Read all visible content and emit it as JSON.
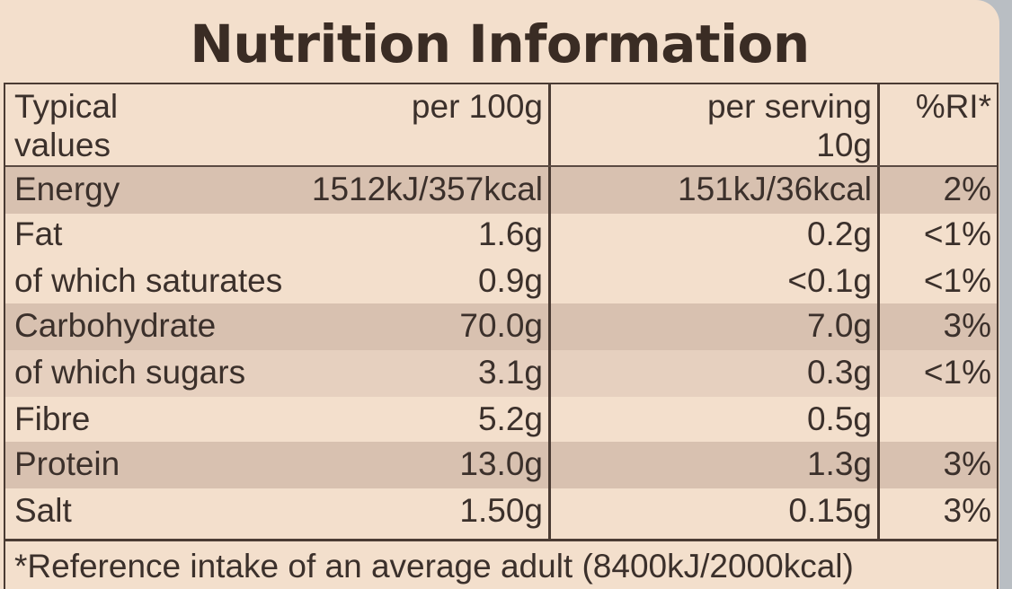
{
  "title": "Nutrition Information",
  "header": {
    "col1_line1": "Typical",
    "col1_line2": "values",
    "col2": "per 100g",
    "col3_line1": "per serving",
    "col3_line2": "10g",
    "col4": "%RI*"
  },
  "rows": [
    {
      "name": "Energy",
      "per100": "1512kJ/357kcal",
      "serving": "151kJ/36kcal",
      "ri": "2%"
    },
    {
      "name": "Fat",
      "per100": "1.6g",
      "serving": "0.2g",
      "ri": "<1%"
    },
    {
      "name": "of which saturates",
      "per100": "0.9g",
      "serving": "<0.1g",
      "ri": "<1%"
    },
    {
      "name": "Carbohydrate",
      "per100": "70.0g",
      "serving": "7.0g",
      "ri": "3%"
    },
    {
      "name": "of which sugars",
      "per100": "3.1g",
      "serving": "0.3g",
      "ri": "<1%"
    },
    {
      "name": "Fibre",
      "per100": "5.2g",
      "serving": "0.5g",
      "ri": ""
    },
    {
      "name": "Protein",
      "per100": "13.0g",
      "serving": "1.3g",
      "ri": "3%"
    },
    {
      "name": "Salt",
      "per100": "1.50g",
      "serving": "0.15g",
      "ri": "3%"
    }
  ],
  "footnote": "*Reference intake of an average adult (8400kJ/2000kcal)"
}
